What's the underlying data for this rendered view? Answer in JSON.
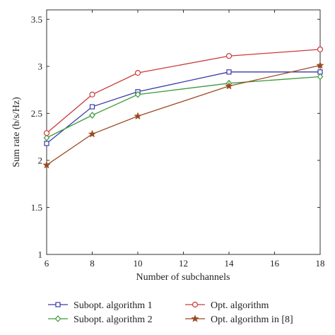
{
  "chart_data": {
    "type": "line",
    "xlabel": "Number of subchannels",
    "ylabel": "Sum rate (b/s/Hz)",
    "xlim": [
      6,
      18
    ],
    "ylim": [
      1,
      3.6
    ],
    "x_ticks": [
      6,
      8,
      10,
      12,
      14,
      16,
      18
    ],
    "y_ticks": [
      1,
      1.5,
      2,
      2.5,
      3,
      3.5
    ],
    "x_tick_labels": [
      "6",
      "8",
      "10",
      "12",
      "14",
      "16",
      "18"
    ],
    "y_tick_labels": [
      "1",
      "1.5",
      "2",
      "2.5",
      "3",
      "3.5"
    ],
    "grid": false,
    "legend_position": "bottom",
    "series": [
      {
        "name": "Subopt. algorithm 1",
        "color": "#3a3aa8",
        "marker": "square",
        "x": [
          6,
          8,
          10,
          14,
          18
        ],
        "y": [
          2.18,
          2.57,
          2.73,
          2.94,
          2.94
        ]
      },
      {
        "name": "Subopt. algorithm 2",
        "color": "#3a9a3a",
        "marker": "diamond",
        "x": [
          6,
          8,
          10,
          14,
          18
        ],
        "y": [
          2.24,
          2.48,
          2.7,
          2.82,
          2.89
        ]
      },
      {
        "name": "Opt. algorithm",
        "color": "#cc3a3a",
        "marker": "circle",
        "x": [
          6,
          8,
          10,
          14,
          18
        ],
        "y": [
          2.29,
          2.7,
          2.93,
          3.11,
          3.18
        ]
      },
      {
        "name": "Opt. algorithm in [8]",
        "color": "#9a4a20",
        "marker": "star",
        "x": [
          6,
          8,
          10,
          14,
          18
        ],
        "y": [
          1.95,
          2.28,
          2.47,
          2.79,
          3.01
        ]
      }
    ]
  }
}
